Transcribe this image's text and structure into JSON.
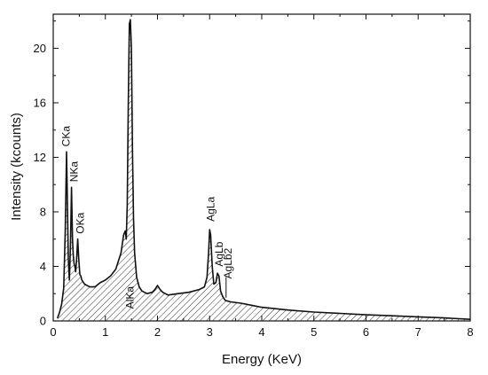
{
  "chart_data": {
    "type": "area",
    "title": "",
    "xlabel": "Energy (KeV)",
    "ylabel": "Intensity (kcounts)",
    "xlim": [
      0,
      8
    ],
    "ylim": [
      0,
      22.5
    ],
    "xticks": [
      0,
      1,
      2,
      3,
      4,
      5,
      6,
      7,
      8
    ],
    "yticks": [
      0,
      4,
      8,
      12,
      16,
      20
    ],
    "grid": false,
    "fill": "hatched",
    "x": [
      0.08,
      0.12,
      0.16,
      0.2,
      0.23,
      0.255,
      0.27,
      0.29,
      0.31,
      0.33,
      0.35,
      0.37,
      0.385,
      0.4,
      0.415,
      0.43,
      0.45,
      0.47,
      0.49,
      0.51,
      0.53,
      0.55,
      0.6,
      0.7,
      0.8,
      0.9,
      1.0,
      1.1,
      1.2,
      1.3,
      1.35,
      1.38,
      1.4,
      1.42,
      1.44,
      1.46,
      1.48,
      1.5,
      1.52,
      1.54,
      1.56,
      1.6,
      1.65,
      1.7,
      1.75,
      1.8,
      1.9,
      1.95,
      2.0,
      2.05,
      2.1,
      2.2,
      2.4,
      2.6,
      2.8,
      2.9,
      2.95,
      2.98,
      3.0,
      3.02,
      3.05,
      3.08,
      3.12,
      3.15,
      3.18,
      3.21,
      3.25,
      3.3,
      3.4,
      3.6,
      3.8,
      4.0,
      4.5,
      5.0,
      5.5,
      6.0,
      6.5,
      7.0,
      7.5,
      8.0
    ],
    "values": [
      0.2,
      0.6,
      1.2,
      2.4,
      6.5,
      12.4,
      9.0,
      4.5,
      3.0,
      5.5,
      9.8,
      6.0,
      4.8,
      4.2,
      4.0,
      3.6,
      4.6,
      6.0,
      4.5,
      3.4,
      3.3,
      3.0,
      2.7,
      2.5,
      2.5,
      2.8,
      3.0,
      3.3,
      3.8,
      5.0,
      6.3,
      6.6,
      6.0,
      8.5,
      16.0,
      21.8,
      22.1,
      20.0,
      12.5,
      7.5,
      5.0,
      3.2,
      2.5,
      2.2,
      2.1,
      2.0,
      2.1,
      2.3,
      2.6,
      2.3,
      2.1,
      1.9,
      2.0,
      2.1,
      2.3,
      2.5,
      3.2,
      5.0,
      6.7,
      6.3,
      4.0,
      2.7,
      2.8,
      3.5,
      3.3,
      2.2,
      1.8,
      1.5,
      1.4,
      1.3,
      1.15,
      1.0,
      0.8,
      0.65,
      0.55,
      0.45,
      0.38,
      0.3,
      0.22,
      0.12
    ],
    "annotations": [
      {
        "text": "CKa",
        "x": 0.25,
        "y": 12.4,
        "rotate": -90,
        "leader": false
      },
      {
        "text": "NKa",
        "x": 0.4,
        "y": 9.8,
        "rotate": -90,
        "leader": false
      },
      {
        "text": "OKa",
        "x": 0.52,
        "y": 6.0,
        "rotate": -90,
        "leader": false
      },
      {
        "text": "AlKa",
        "x": 1.47,
        "y": 0.5,
        "rotate": -90,
        "leader": false
      },
      {
        "text": "AgLa",
        "x": 3.02,
        "y": 6.9,
        "rotate": -90,
        "leader": false
      },
      {
        "text": "AgLb",
        "x": 3.18,
        "y": 3.6,
        "rotate": -90,
        "leader": false
      },
      {
        "text": "AgLb2",
        "x": 3.35,
        "y": 2.7,
        "rotate": -90,
        "leader": true
      }
    ]
  }
}
